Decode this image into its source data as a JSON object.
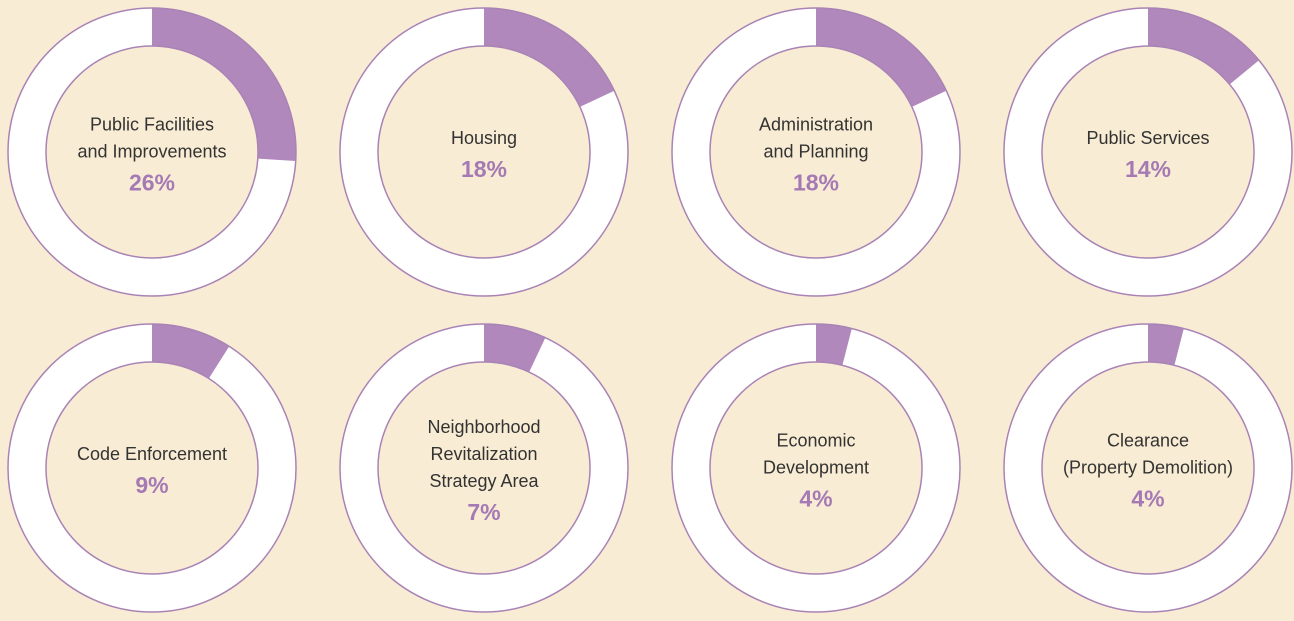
{
  "chart_data": [
    {
      "type": "donut",
      "label": [
        "Public Facilities",
        "and Improvements"
      ],
      "values": [
        26
      ],
      "value_labels": [
        "26%"
      ],
      "color": "#b088bb"
    },
    {
      "type": "donut",
      "label": [
        "Housing"
      ],
      "values": [
        18
      ],
      "value_labels": [
        "18%"
      ],
      "color": "#b088bb"
    },
    {
      "type": "donut",
      "label": [
        "Administration",
        "and Planning"
      ],
      "values": [
        18
      ],
      "value_labels": [
        "18%"
      ],
      "color": "#b088bb"
    },
    {
      "type": "donut",
      "label": [
        "Public Services"
      ],
      "values": [
        14
      ],
      "value_labels": [
        "14%"
      ],
      "color": "#b088bb"
    },
    {
      "type": "donut",
      "label": [
        "Code Enforcement"
      ],
      "values": [
        9
      ],
      "value_labels": [
        "9%"
      ],
      "color": "#b088bb"
    },
    {
      "type": "donut",
      "label": [
        "Neighborhood",
        "Revitalization",
        "Strategy Area"
      ],
      "values": [
        7
      ],
      "value_labels": [
        "7%"
      ],
      "color": "#b088bb"
    },
    {
      "type": "donut",
      "label": [
        "Economic",
        "Development"
      ],
      "values": [
        4
      ],
      "value_labels": [
        "4%"
      ],
      "color": "#b088bb"
    },
    {
      "type": "donut",
      "label": [
        "Clearance",
        "(Property Demolition)"
      ],
      "values": [
        4
      ],
      "value_labels": [
        "4%"
      ],
      "color": "#b088bb"
    }
  ]
}
